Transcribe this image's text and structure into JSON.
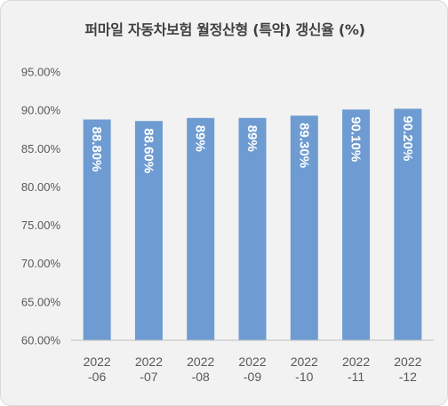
{
  "chart_data": {
    "type": "bar",
    "title": "퍼마일 자동차보험 월정산형 (특약) 갱신율 (%)",
    "categories": [
      [
        "2022",
        "-06"
      ],
      [
        "2022",
        "-07"
      ],
      [
        "2022",
        "-08"
      ],
      [
        "2022",
        "-09"
      ],
      [
        "2022",
        "-10"
      ],
      [
        "2022",
        "-11"
      ],
      [
        "2022",
        "-12"
      ]
    ],
    "values": [
      88.8,
      88.6,
      89.0,
      89.0,
      89.3,
      90.1,
      90.2
    ],
    "data_labels": [
      "88.80%",
      "88.60%",
      "89%",
      "89%",
      "89.30%",
      "90.10%",
      "90.20%"
    ],
    "ylim": [
      60,
      95
    ],
    "yticks": [
      60,
      65,
      70,
      75,
      80,
      85,
      90,
      95
    ],
    "ytick_labels": [
      "60.00%",
      "65.00%",
      "70.00%",
      "75.00%",
      "80.00%",
      "85.00%",
      "90.00%",
      "95.00%"
    ],
    "xlabel": "",
    "ylabel": "",
    "grid": false,
    "bar_color": "#6e9bd1",
    "axis_color": "#bfbfbf"
  }
}
